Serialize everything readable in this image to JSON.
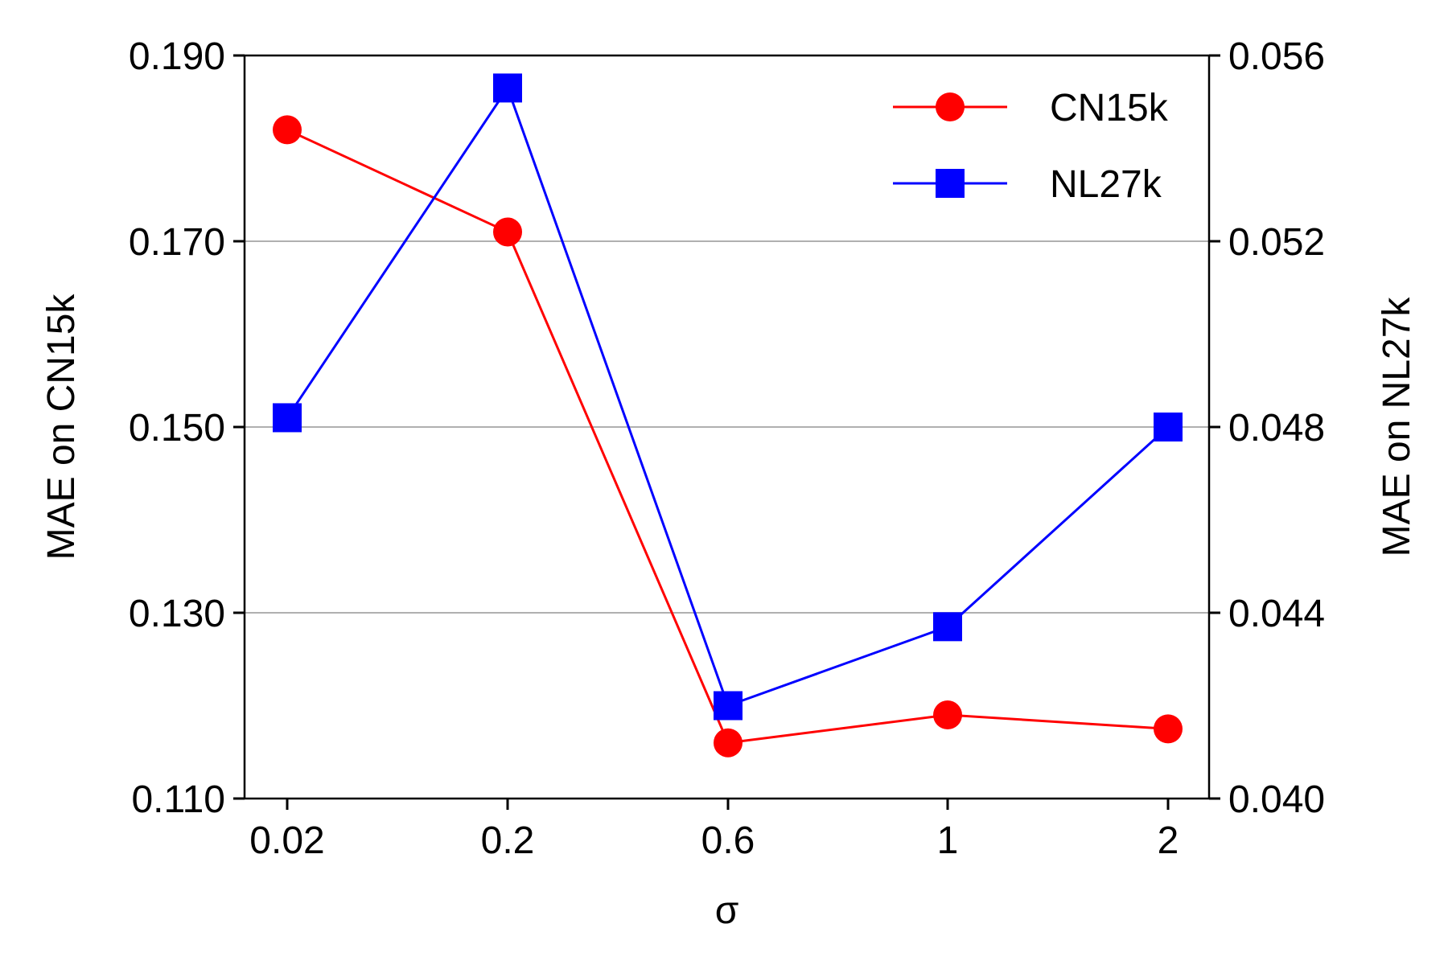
{
  "chart_data": {
    "type": "line",
    "xlabel": "σ",
    "categories": [
      "0.02",
      "0.2",
      "0.6",
      "1",
      "2"
    ],
    "y_left": {
      "label": "MAE on CN15k",
      "ylim": [
        0.11,
        0.19
      ],
      "ticks": [
        "0.110",
        "0.130",
        "0.150",
        "0.170",
        "0.190"
      ]
    },
    "y_right": {
      "label": "MAE on NL27k",
      "ylim": [
        0.04,
        0.056
      ],
      "ticks": [
        "0.040",
        "0.044",
        "0.048",
        "0.052",
        "0.056"
      ]
    },
    "grid": "horizontal",
    "legend_position": "top-right",
    "series": [
      {
        "name": "CN15k",
        "axis": "left",
        "color": "#ff0000",
        "marker": "circle",
        "values": [
          0.182,
          0.171,
          0.116,
          0.119,
          0.1175
        ]
      },
      {
        "name": "NL27k",
        "axis": "right",
        "color": "#0000ff",
        "marker": "square",
        "values": [
          0.0482,
          0.0553,
          0.042,
          0.0437,
          0.048
        ]
      }
    ]
  }
}
